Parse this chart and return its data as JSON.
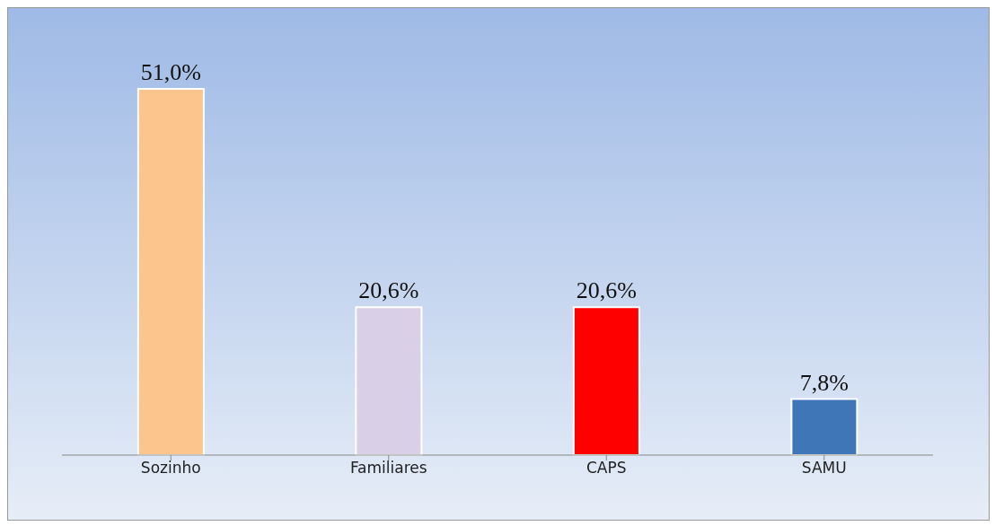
{
  "chart_data": {
    "type": "bar",
    "categories": [
      "Sozinho",
      "Familiares",
      "CAPS",
      "SAMU"
    ],
    "values": [
      51.0,
      20.6,
      20.6,
      7.8
    ],
    "value_labels": [
      "51,0%",
      "20,6%",
      "20,6%",
      "7,8%"
    ],
    "colors": [
      "#fcc58e",
      "#d9cfe6",
      "#ff0000",
      "#3f76b8"
    ],
    "grid": false,
    "legend": false
  }
}
